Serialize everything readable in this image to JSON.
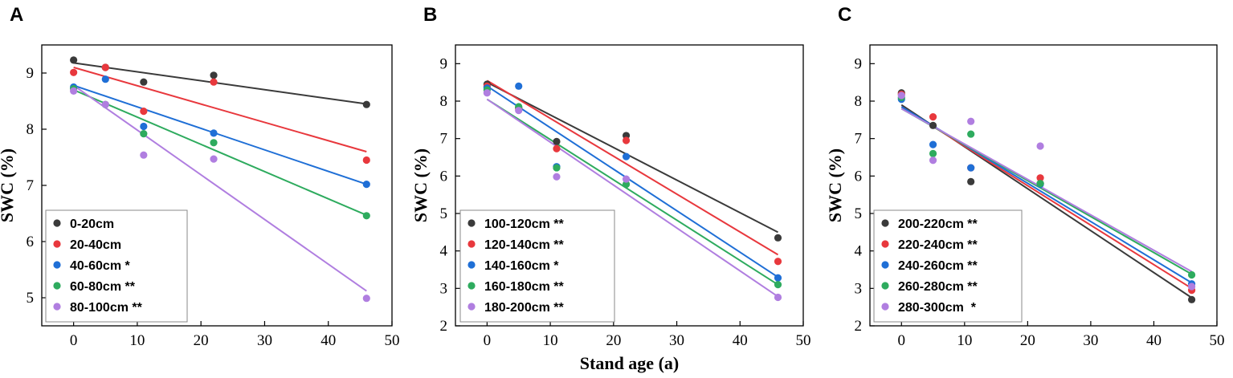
{
  "chart_data": [
    {
      "type": "scatter",
      "panel_label": "A",
      "ylabel": "SWC (%)",
      "xlabel": "",
      "xlim": [
        -5,
        50
      ],
      "ylim": [
        4.5,
        9.5
      ],
      "xticks": [
        0,
        10,
        20,
        30,
        40,
        50
      ],
      "yticks": [
        5,
        6,
        7,
        8,
        9
      ],
      "legend_position": "bottom-left",
      "series": [
        {
          "name": "0-20cm",
          "color": "#3a3a3a",
          "x": [
            0,
            5,
            11,
            22,
            46
          ],
          "y": [
            9.23,
            9.1,
            8.84,
            8.96,
            8.44
          ],
          "fit": [
            9.18,
            8.45
          ]
        },
        {
          "name": "20-40cm",
          "color": "#e8383d",
          "x": [
            0,
            5,
            11,
            22,
            46
          ],
          "y": [
            9.01,
            9.1,
            8.32,
            8.84,
            7.45
          ],
          "fit": [
            9.1,
            7.6
          ]
        },
        {
          "name": "40-60cm *",
          "color": "#1f6fd6",
          "x": [
            0,
            5,
            11,
            22,
            46
          ],
          "y": [
            8.75,
            8.89,
            8.05,
            7.93,
            7.02
          ],
          "fit": [
            8.78,
            7.02
          ]
        },
        {
          "name": "60-80cm **",
          "color": "#2eab5e",
          "x": [
            0,
            5,
            11,
            22,
            46
          ],
          "y": [
            8.72,
            8.44,
            7.92,
            7.76,
            6.46
          ],
          "fit": [
            8.7,
            6.47
          ]
        },
        {
          "name": "80-100cm **",
          "color": "#b07ee0",
          "x": [
            0,
            5,
            11,
            22,
            46
          ],
          "y": [
            8.68,
            8.44,
            7.54,
            7.47,
            4.99
          ],
          "fit": [
            8.78,
            5.12
          ]
        }
      ]
    },
    {
      "type": "scatter",
      "panel_label": "B",
      "ylabel": "SWC (%)",
      "xlabel": "Stand age (a)",
      "xlim": [
        -5,
        50
      ],
      "ylim": [
        2,
        9.5
      ],
      "xticks": [
        0,
        10,
        20,
        30,
        40,
        50
      ],
      "yticks": [
        2,
        3,
        4,
        5,
        6,
        7,
        8,
        9
      ],
      "legend_position": "bottom-left",
      "series": [
        {
          "name": "100-120cm **",
          "color": "#3a3a3a",
          "x": [
            0,
            5,
            11,
            22,
            46
          ],
          "y": [
            8.45,
            7.83,
            6.92,
            7.08,
            4.35
          ],
          "fit": [
            8.5,
            4.5
          ]
        },
        {
          "name": "120-140cm **",
          "color": "#e8383d",
          "x": [
            0,
            5,
            11,
            22,
            46
          ],
          "y": [
            8.4,
            7.8,
            6.73,
            6.95,
            3.72
          ],
          "fit": [
            8.55,
            3.9
          ]
        },
        {
          "name": "140-160cm *",
          "color": "#1f6fd6",
          "x": [
            0,
            5,
            11,
            22,
            46
          ],
          "y": [
            8.35,
            8.4,
            6.25,
            6.52,
            3.28
          ],
          "fit": [
            8.4,
            3.3
          ]
        },
        {
          "name": "160-180cm **",
          "color": "#2eab5e",
          "x": [
            0,
            5,
            11,
            22,
            46
          ],
          "y": [
            8.3,
            7.85,
            6.22,
            5.78,
            3.1
          ],
          "fit": [
            8.05,
            3.1
          ]
        },
        {
          "name": "180-200cm **",
          "color": "#b07ee0",
          "x": [
            0,
            5,
            11,
            22,
            46
          ],
          "y": [
            8.22,
            7.75,
            5.98,
            5.92,
            2.76
          ],
          "fit": [
            8.05,
            2.78
          ]
        }
      ]
    },
    {
      "type": "scatter",
      "panel_label": "C",
      "ylabel": "SWC (%)",
      "xlabel": "",
      "xlim": [
        -5,
        50
      ],
      "ylim": [
        2,
        9.5
      ],
      "xticks": [
        0,
        10,
        20,
        30,
        40,
        50
      ],
      "yticks": [
        2,
        3,
        4,
        5,
        6,
        7,
        8,
        9
      ],
      "legend_position": "bottom-left",
      "series": [
        {
          "name": "200-220cm **",
          "color": "#3a3a3a",
          "x": [
            0,
            5,
            11,
            22,
            46
          ],
          "y": [
            8.22,
            7.35,
            5.85,
            5.8,
            2.7
          ],
          "fit": [
            7.9,
            2.75
          ]
        },
        {
          "name": "220-240cm **",
          "color": "#e8383d",
          "x": [
            0,
            5,
            11,
            22,
            46
          ],
          "y": [
            8.18,
            7.58,
            6.22,
            5.95,
            2.95
          ],
          "fit": [
            7.85,
            3.0
          ]
        },
        {
          "name": "240-260cm **",
          "color": "#1f6fd6",
          "x": [
            0,
            5,
            11,
            22,
            46
          ],
          "y": [
            8.05,
            6.84,
            6.22,
            5.78,
            3.12
          ],
          "fit": [
            7.85,
            3.15
          ]
        },
        {
          "name": "260-280cm **",
          "color": "#2eab5e",
          "x": [
            0,
            5,
            11,
            22,
            46
          ],
          "y": [
            8.1,
            6.6,
            7.12,
            5.8,
            3.36
          ],
          "fit": [
            7.8,
            3.38
          ]
        },
        {
          "name": "280-300cm  *",
          "color": "#b07ee0",
          "x": [
            0,
            5,
            11,
            22,
            46
          ],
          "y": [
            8.15,
            6.42,
            7.46,
            6.8,
            3.05
          ],
          "fit": [
            7.8,
            3.45
          ]
        }
      ]
    }
  ]
}
